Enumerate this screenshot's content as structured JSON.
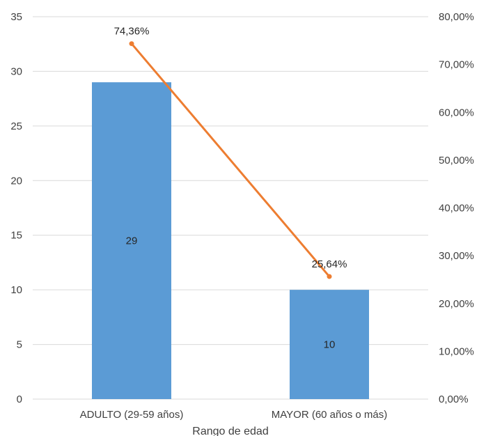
{
  "chart_data": {
    "type": "bar",
    "categories": [
      "ADULTO (29-59 años)",
      "MAYOR (60 años o más)"
    ],
    "series": [
      {
        "type": "bar",
        "axis": "left",
        "values": [
          29,
          10
        ],
        "data_labels": [
          "29",
          "10"
        ],
        "color": "#5B9BD5"
      },
      {
        "type": "line",
        "axis": "right",
        "values": [
          74.36,
          25.64
        ],
        "data_labels": [
          "74,36%",
          "25,64%"
        ],
        "color": "#ED7D31"
      }
    ],
    "xlabel": "Rango de edad",
    "y_left": {
      "range": [
        0,
        35
      ],
      "ticks": [
        "0",
        "5",
        "10",
        "15",
        "20",
        "25",
        "30",
        "35"
      ]
    },
    "y_right": {
      "range": [
        0,
        80
      ],
      "ticks": [
        "0,00%",
        "10,00%",
        "20,00%",
        "30,00%",
        "40,00%",
        "50,00%",
        "60,00%",
        "70,00%",
        "80,00%"
      ]
    },
    "grid": true,
    "gridline_color": "#D9D9D9"
  }
}
